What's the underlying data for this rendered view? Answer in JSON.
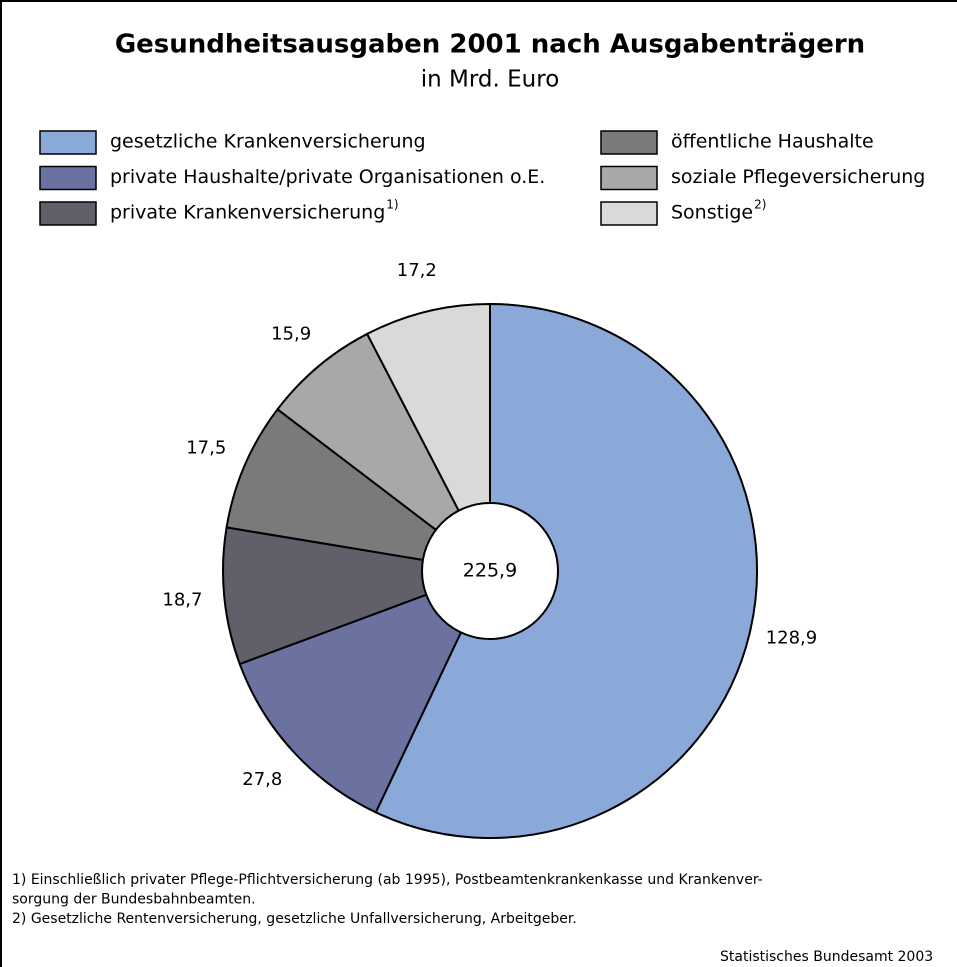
{
  "chart_data": {
    "type": "pie",
    "title": "Gesundheitsausgaben 2001 nach Ausgabenträgern",
    "subtitle": "in Mrd. Euro",
    "categories": [
      "gesetzliche Krankenversicherung",
      "private Haushalte/private Organisationen o.E.",
      "private Krankenversicherung",
      "öffentliche Haushalte",
      "soziale Pflegeversicherung",
      "Sonstige"
    ],
    "category_notes": {
      "2": "1)",
      "5": "2)"
    },
    "values": [
      128.9,
      27.8,
      18.7,
      17.5,
      15.9,
      17.2
    ],
    "value_labels": [
      "128,9",
      "27,8",
      "18,7",
      "17,5",
      "15,9",
      "17,2"
    ],
    "colors": [
      "#8aa8d8",
      "#6b72a0",
      "#625e6a",
      "#7a7a7a",
      "#a8a8a8",
      "#d9d9d9"
    ],
    "total": {
      "value": 225.9,
      "label": "225,9"
    },
    "footnotes": [
      "1) Einschließlich privater Pflege-Pflichtversicherung (ab 1995), Postbeamtenkrankenkasse und Krankenver-",
      "sorgung der Bundesbahnbeamten.",
      "2) Gesetzliche Rentenversicherung, gesetzliche Unfallversicherung, Arbeitgeber."
    ],
    "source": "Statistisches Bundesamt 2003"
  }
}
